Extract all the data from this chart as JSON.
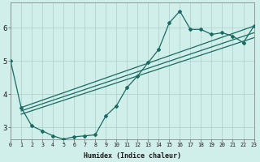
{
  "xlabel": "Humidex (Indice chaleur)",
  "bg_color": "#d0eeea",
  "grid_color": "#aacfcb",
  "line_color": "#1a6b60",
  "xtick_labels": [
    "0",
    "1",
    "2",
    "3",
    "4",
    "5",
    "6",
    "7",
    "8",
    "9",
    "10",
    "11",
    "12",
    "13",
    "14",
    "15",
    "16",
    "17",
    "18",
    "19",
    "20",
    "21",
    "22",
    "23"
  ],
  "ytick_labels": [
    "3",
    "4",
    "5",
    "6"
  ],
  "yticks": [
    3,
    4,
    5,
    6
  ],
  "xlim": [
    0,
    23
  ],
  "ylim": [
    2.65,
    6.75
  ],
  "line1_x": [
    0,
    1,
    2,
    3,
    4,
    5,
    6,
    7,
    8,
    9,
    10,
    11,
    12,
    13,
    14,
    15,
    16,
    17,
    18,
    19,
    20,
    21,
    22,
    23
  ],
  "line1_y": [
    5.0,
    3.6,
    3.05,
    2.9,
    2.75,
    2.65,
    2.72,
    2.75,
    2.78,
    3.35,
    3.65,
    4.2,
    4.55,
    4.95,
    5.35,
    6.15,
    6.5,
    5.95,
    5.95,
    5.8,
    5.85,
    5.75,
    5.55,
    6.05
  ],
  "line2_x": [
    1,
    23
  ],
  "line2_y": [
    3.6,
    6.05
  ],
  "line3_x": [
    1,
    23
  ],
  "line3_y": [
    3.5,
    5.85
  ],
  "line4_x": [
    1,
    23
  ],
  "line4_y": [
    3.4,
    5.7
  ]
}
